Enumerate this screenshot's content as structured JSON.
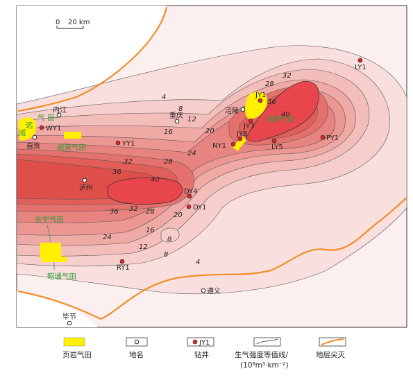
{
  "scale_bar": {
    "zero": "0",
    "distance": "20 km"
  },
  "towns": [
    {
      "id": "neijiang",
      "name": "内江"
    },
    {
      "id": "zigong",
      "name": "自贡"
    },
    {
      "id": "chongqing",
      "name": "重庆"
    },
    {
      "id": "luzhou",
      "name": "泸州"
    },
    {
      "id": "fuling",
      "name": "涪陵"
    },
    {
      "id": "zunyi",
      "name": "遵义"
    },
    {
      "id": "bijie",
      "name": "毕节"
    }
  ],
  "wells": [
    "WY1",
    "YY1",
    "DY4",
    "DY1",
    "RY1",
    "JY1",
    "JY3",
    "JY8",
    "NY1",
    "LY5",
    "PY1",
    "LY1"
  ],
  "gas_fields": [
    {
      "id": "weiyuan",
      "name_a": "威",
      "name_b": "远",
      "name_c": "气",
      "name_d": "田"
    },
    {
      "id": "weirong",
      "name": "威荣气田"
    },
    {
      "id": "changning",
      "name": "长宁气田"
    },
    {
      "id": "zhaotong",
      "name": "昭通气田"
    },
    {
      "id": "fuling_field",
      "name": "涪陵气田"
    }
  ],
  "contour_values": [
    "4",
    "8",
    "12",
    "16",
    "20",
    "24",
    "28",
    "32",
    "36",
    "40"
  ],
  "colors": {
    "gas_field_fill": "#fff000",
    "high_intensity": "#e8464c",
    "gas_label_green": "#2e9a3a",
    "erosion_line": "#f28c28",
    "well_red": "#d9262c"
  },
  "legend": {
    "gas_field": "页岩气田",
    "place_name": "地名",
    "well": "钻井",
    "well_sample": "JY1",
    "contour_line1": "生气强度等值线/",
    "contour_line2": "(10⁸m³·km⁻²)",
    "erosion": "地层尖灭"
  }
}
